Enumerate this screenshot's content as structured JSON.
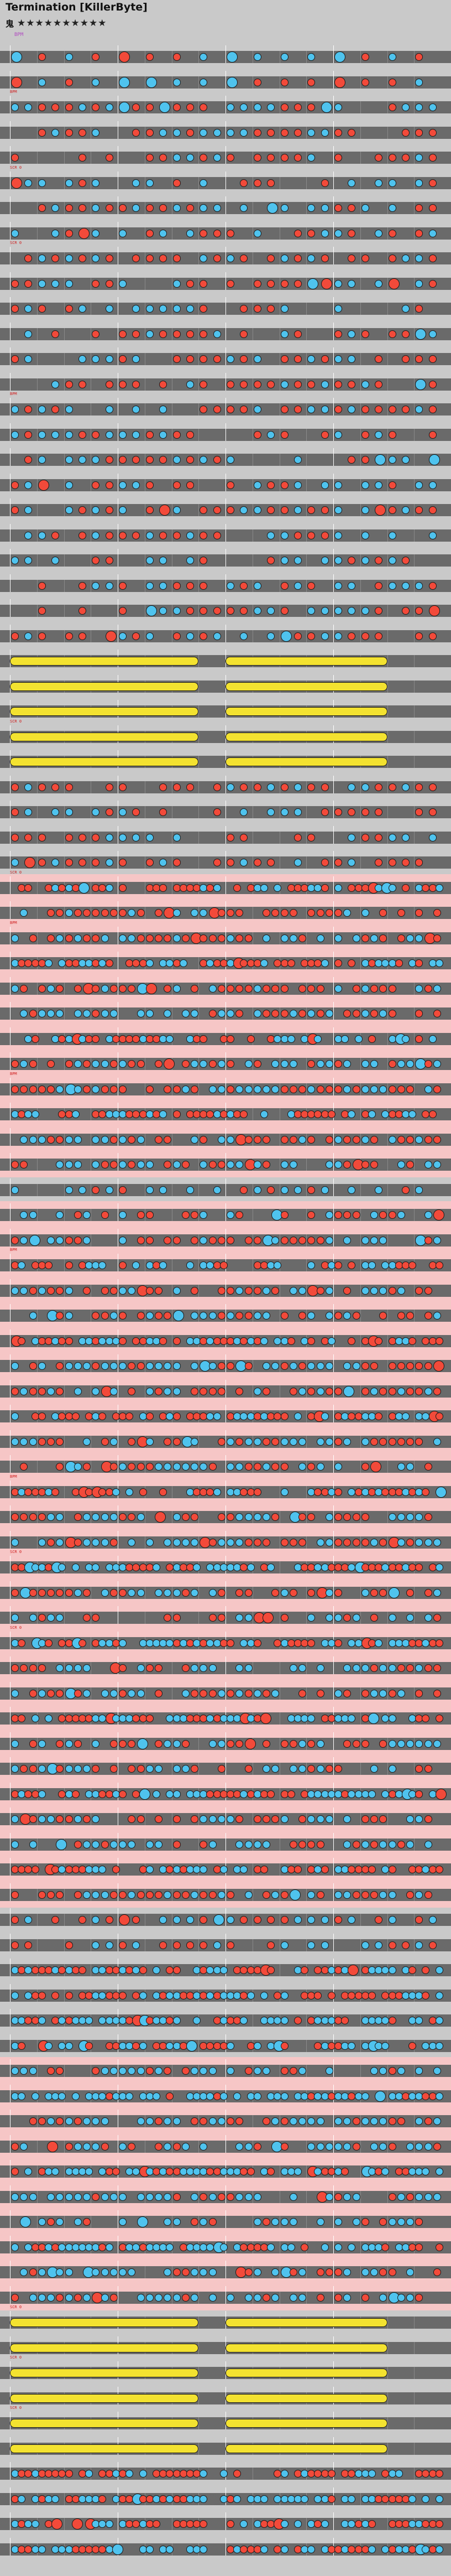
{
  "header": {
    "title": "Termination [KillerByte]",
    "difficulty_label": "鬼",
    "star_rating": "★★★★★★★★★★",
    "bpm_marker": "BPM"
  },
  "colors": {
    "background": "#c9c9c9",
    "lane": "#6a6a6a",
    "don": "#f24a3a",
    "ka": "#4fc3ee",
    "roll": "#f3e230",
    "gogo_band": "#f6c6c6"
  },
  "chart_data": {
    "type": "table",
    "title": "Termination [KillerByte]",
    "measures_per_row": 4,
    "row_count": 100,
    "gogo_rows": [
      [
        33,
        44
      ],
      [
        46,
        73
      ],
      [
        80,
        89
      ]
    ],
    "roll_rows": [
      24,
      25,
      26,
      27,
      28,
      90,
      91,
      92,
      93,
      94,
      95
    ],
    "events": [
      {
        "row": 2,
        "text": "BPM"
      },
      {
        "row": 5,
        "text": "SCR 0"
      },
      {
        "row": 8,
        "text": "SCR 0"
      },
      {
        "row": 14,
        "text": "BPM"
      },
      {
        "row": 27,
        "text": "SCR 0"
      },
      {
        "row": 33,
        "text": "SCR 0"
      },
      {
        "row": 35,
        "text": "BPM"
      },
      {
        "row": 41,
        "text": "BPM"
      },
      {
        "row": 48,
        "text": "BPM"
      },
      {
        "row": 57,
        "text": "BPM"
      },
      {
        "row": 60,
        "text": "SCR 0"
      },
      {
        "row": 63,
        "text": "SCR 0"
      },
      {
        "row": 90,
        "text": "SCR 0"
      },
      {
        "row": 92,
        "text": "SCR 0"
      },
      {
        "row": 94,
        "text": "SCR 0"
      }
    ]
  }
}
